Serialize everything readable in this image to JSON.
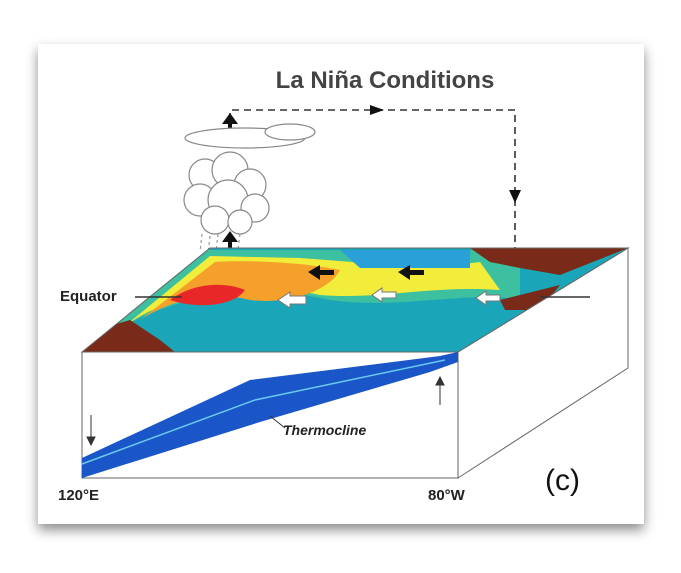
{
  "title": "La Niña Conditions",
  "labels": {
    "equator": "Equator",
    "thermocline": "Thermocline",
    "west": "120°E",
    "east": "80°W",
    "panel": "(c)"
  }
}
